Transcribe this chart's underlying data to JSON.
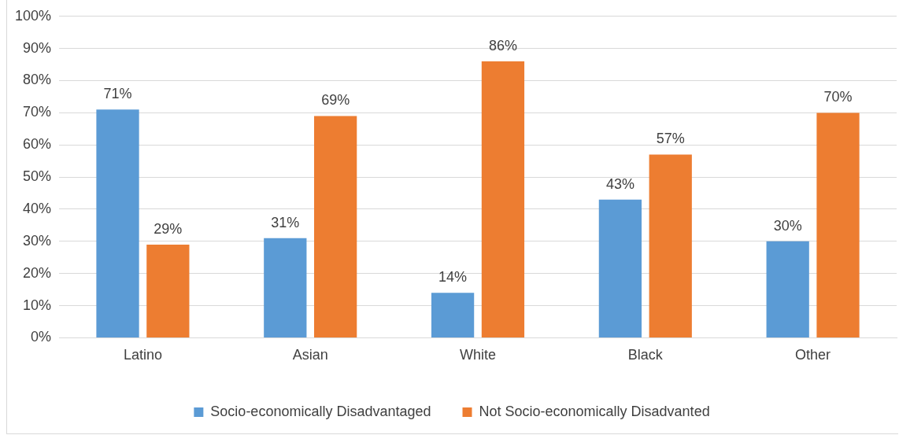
{
  "chart_data": {
    "type": "bar",
    "categories": [
      "Latino",
      "Asian",
      "White",
      "Black",
      "Other"
    ],
    "series": [
      {
        "name": "Socio-economically Disadvantaged",
        "color": "#5b9bd5",
        "values": [
          71,
          31,
          14,
          43,
          30
        ],
        "value_labels": [
          "71%",
          "31%",
          "14%",
          "43%",
          "30%"
        ]
      },
      {
        "name": "Not Socio-economically Disadvanted",
        "color": "#ed7d31",
        "values": [
          29,
          69,
          86,
          57,
          70
        ],
        "value_labels": [
          "29%",
          "69%",
          "86%",
          "57%",
          "70%"
        ]
      }
    ],
    "ylim": [
      0,
      100
    ],
    "yticks": [
      {
        "value": 0,
        "label": "0%"
      },
      {
        "value": 10,
        "label": "10%"
      },
      {
        "value": 20,
        "label": "20%"
      },
      {
        "value": 30,
        "label": "30%"
      },
      {
        "value": 40,
        "label": "40%"
      },
      {
        "value": 50,
        "label": "50%"
      },
      {
        "value": 60,
        "label": "60%"
      },
      {
        "value": 70,
        "label": "70%"
      },
      {
        "value": 80,
        "label": "80%"
      },
      {
        "value": 90,
        "label": "90%"
      },
      {
        "value": 100,
        "label": "100%"
      }
    ],
    "grid": "y",
    "legend": "bottom"
  }
}
